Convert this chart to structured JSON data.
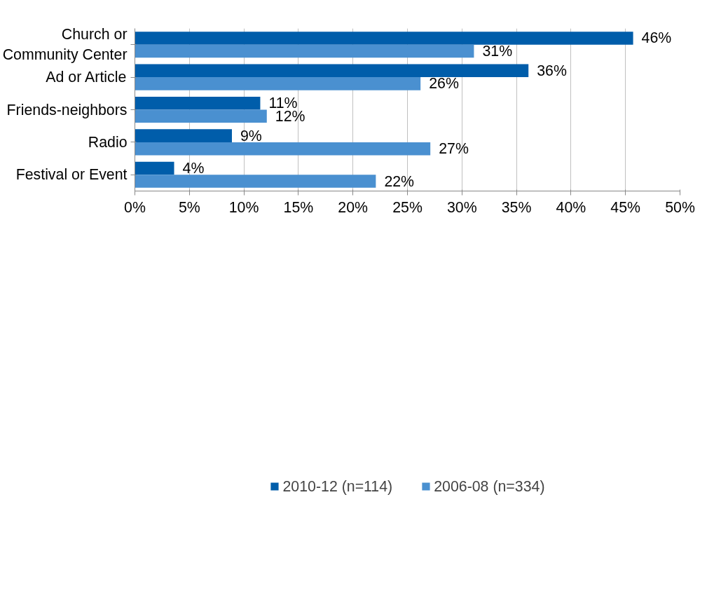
{
  "chart_data": {
    "type": "bar",
    "orientation": "horizontal",
    "categories": [
      "Church or\nCommunity Center",
      "Ad or Article",
      "Friends-neighbors",
      "Radio",
      "Festival or Event"
    ],
    "series": [
      {
        "name": "2010-12 (n=114)",
        "color": "#005daa",
        "values": [
          45.7,
          36.1,
          11.5,
          8.9,
          3.6
        ],
        "value_labels": [
          "46%",
          "36%",
          "11%",
          "9%",
          "4%"
        ]
      },
      {
        "name": "2006-08 (n=334)",
        "color": "#4a90d0",
        "values": [
          31.1,
          26.2,
          12.1,
          27.1,
          22.1
        ],
        "value_labels": [
          "31%",
          "26%",
          "12%",
          "27%",
          "22%"
        ]
      }
    ],
    "xlim": [
      0,
      50
    ],
    "xticks": [
      {
        "value": 0,
        "label": "0%"
      },
      {
        "value": 5,
        "label": "5%"
      },
      {
        "value": 10,
        "label": "10%"
      },
      {
        "value": 15,
        "label": "15%"
      },
      {
        "value": 20,
        "label": "20%"
      },
      {
        "value": 25,
        "label": "25%"
      },
      {
        "value": 30,
        "label": "30%"
      },
      {
        "value": 35,
        "label": "35%"
      },
      {
        "value": 40,
        "label": "40%"
      },
      {
        "value": 45,
        "label": "45%"
      },
      {
        "value": 50,
        "label": "50%"
      }
    ],
    "grid": "x",
    "legend": "bottom"
  }
}
